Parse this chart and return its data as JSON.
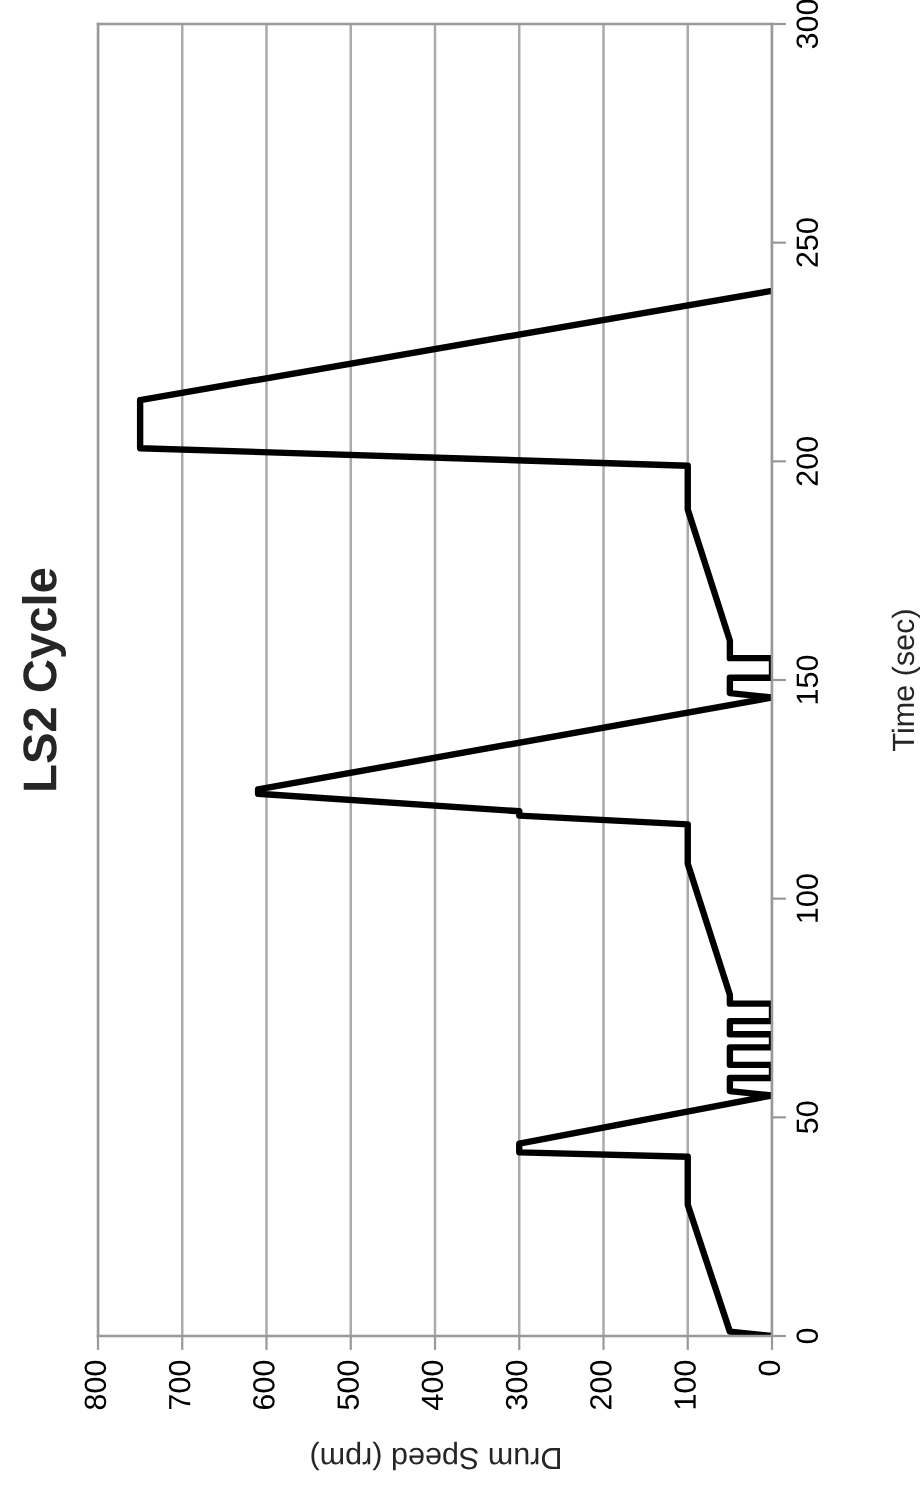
{
  "chart_data": {
    "type": "line",
    "title": "LS2 Cycle",
    "xlabel": "Drum Speed (rpm)",
    "ylabel": "Time (sec)",
    "x": [
      0,
      50,
      100,
      100,
      300,
      300,
      0,
      50,
      50,
      0,
      0,
      50,
      50,
      0,
      0,
      50,
      50,
      0,
      0,
      50,
      50,
      100,
      100,
      300,
      300,
      610,
      610,
      0,
      50,
      50,
      0,
      0,
      50,
      50,
      100,
      100,
      750,
      750,
      0
    ],
    "series": [
      {
        "color": "#000000",
        "values": [
          0,
          1,
          30,
          41,
          42,
          44,
          55,
          56,
          59,
          59,
          62,
          62,
          66,
          66,
          69,
          69,
          72,
          72,
          76,
          76,
          78,
          108,
          117,
          119,
          120,
          124,
          125,
          146,
          147,
          150.5,
          150.5,
          155,
          155,
          159,
          189,
          199,
          203,
          214,
          239
        ]
      }
    ],
    "xlim": [
      800,
      0
    ],
    "xticks": [
      0,
      100,
      200,
      300,
      400,
      500,
      600,
      700,
      800
    ],
    "ylim": [
      0,
      300
    ],
    "yticks": [
      0,
      50,
      100,
      150,
      200,
      250,
      300
    ],
    "grid": "x",
    "line_style": "solid",
    "marker": "none"
  }
}
